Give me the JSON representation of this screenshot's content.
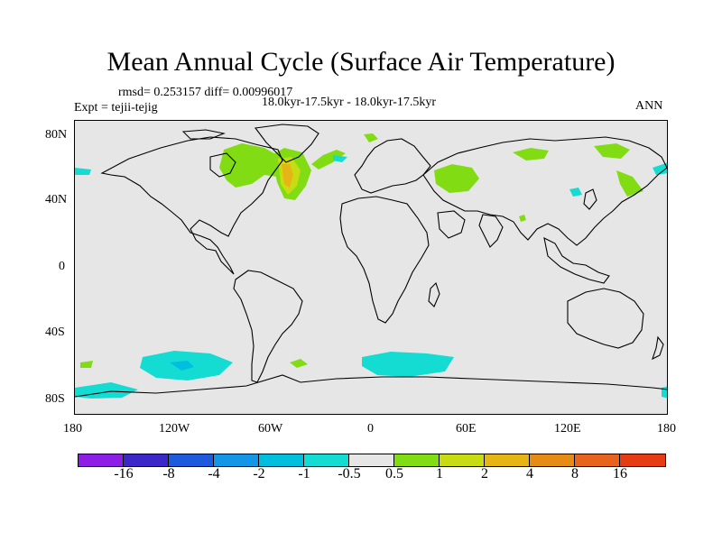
{
  "title": "Mean Annual Cycle (Surface Air Temperature)",
  "stats": "rmsd= 0.253157 diff= 0.00996017",
  "experiment": "Expt = tejii-tejig",
  "period": "18.0kyr-17.5kyr - 18.0kyr-17.5kyr",
  "season": "ANN",
  "lat_ticks": [
    "80N",
    "40N",
    "0",
    "40S",
    "80S"
  ],
  "lon_ticks": [
    "180",
    "120W",
    "60W",
    "0",
    "60E",
    "120E",
    "180"
  ],
  "colorbar": {
    "colors": [
      "#8c1ee6",
      "#3c28c8",
      "#1e5adc",
      "#1496e6",
      "#00bede",
      "#14dcd2",
      "#e6e6e6",
      "#82dc14",
      "#c8dc14",
      "#e6b414",
      "#e68c14",
      "#e6641e",
      "#e63c14"
    ],
    "labels": [
      "-16",
      "-8",
      "-4",
      "-2",
      "-1",
      "-0.5",
      "0.5",
      "1",
      "2",
      "4",
      "8",
      "16"
    ]
  },
  "colors": {
    "background": "#e6e6e6",
    "pos_1": "#82dc14",
    "pos_2": "#c8dc14",
    "pos_4": "#e6b414",
    "neg_1": "#00bede",
    "neg_05": "#14dcd2",
    "neg_2": "#1496e6"
  }
}
